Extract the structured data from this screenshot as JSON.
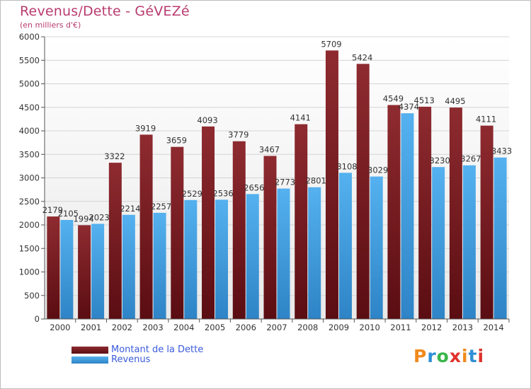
{
  "header": {
    "title": "Revenus/Dette - GéVEZé",
    "subtitle": "(en milliers d'€)"
  },
  "legend": {
    "items": [
      {
        "label": "Montant de la Dette",
        "color": "#7a1a1f"
      },
      {
        "label": "Revenus",
        "color": "#4aa3e0"
      }
    ]
  },
  "logo": {
    "text": "Proxiti",
    "colors": [
      "#f08a1c",
      "#2f8fd6",
      "#39b54a",
      "#e0322d",
      "#f08a1c",
      "#2f8fd6",
      "#e0322d"
    ]
  },
  "chart_data": {
    "type": "bar",
    "title": "Revenus/Dette - GéVEZé",
    "subtitle": "(en milliers d'€)",
    "categories": [
      "2000",
      "2001",
      "2002",
      "2003",
      "2004",
      "2005",
      "2006",
      "2007",
      "2008",
      "2009",
      "2010",
      "2011",
      "2012",
      "2013",
      "2014"
    ],
    "series": [
      {
        "name": "Montant de la Dette",
        "color": "#7a1a1f",
        "values": [
          2179,
          1994,
          3322,
          3919,
          3659,
          4093,
          3779,
          3467,
          4141,
          5709,
          5424,
          4549,
          4513,
          4495,
          4111
        ],
        "labels": [
          "2179",
          "1994",
          "3322",
          "3919",
          "3659",
          "4093",
          "3779",
          "3467",
          "4141",
          "5709",
          "5424",
          "4549",
          "4513",
          "4495",
          "4111"
        ]
      },
      {
        "name": "Revenus",
        "color": "#4aa3e0",
        "values": [
          2105,
          2023,
          2214,
          2257,
          2529,
          2536,
          2656,
          2773,
          2801,
          3108,
          3029,
          4374,
          3230,
          3267,
          3433
        ],
        "labels": [
          "2105",
          "2023",
          "2214",
          "2257",
          "2529",
          "2536",
          "2656",
          "2773",
          "2801",
          "3108",
          "3029",
          "4374",
          "3230",
          "3267",
          "3433"
        ]
      }
    ],
    "ylim": [
      0,
      6000
    ],
    "yticks": [
      0,
      500,
      1000,
      1500,
      2000,
      2500,
      3000,
      3500,
      4000,
      4500,
      5000,
      5500,
      6000
    ],
    "ytick_labels": [
      "0",
      "500",
      "1000",
      "1500",
      "2000",
      "2500",
      "3000",
      "3500",
      "4000",
      "4500",
      "5000",
      "5500",
      "6000"
    ],
    "grid": true,
    "legend_position": "bottom-left"
  }
}
